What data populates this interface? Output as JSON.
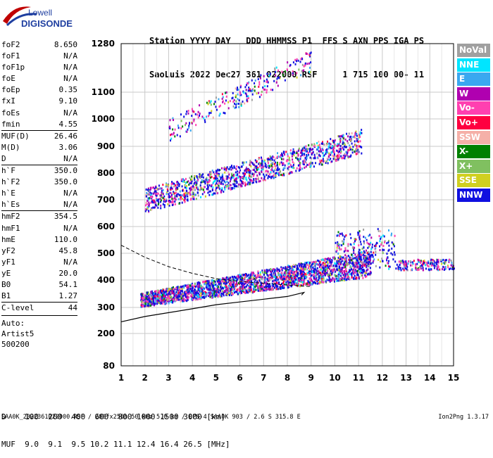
{
  "logo": {
    "line1": "Lowell",
    "line2": "DIGISONDE"
  },
  "header": {
    "row1": "Station YYYY DAY   DDD HHMMSS P1  FFS S AXN PPS IGA PS",
    "row2": "SaoLuis 2022 Dec27 361 022000 RSF     1 715 100 00- 11"
  },
  "params": {
    "group1": [
      {
        "label": "foF2",
        "value": "8.650"
      },
      {
        "label": "foF1",
        "value": "N/A"
      },
      {
        "label": "foF1p",
        "value": "N/A"
      },
      {
        "label": "foE",
        "value": "N/A"
      },
      {
        "label": "foEp",
        "value": "0.35"
      },
      {
        "label": "fxI",
        "value": "9.10"
      },
      {
        "label": "foEs",
        "value": "N/A"
      },
      {
        "label": "fmin",
        "value": "4.55"
      }
    ],
    "group2": [
      {
        "label": "MUF(D)",
        "value": "26.46"
      },
      {
        "label": "M(D)",
        "value": "3.06"
      },
      {
        "label": "D",
        "value": "N/A"
      }
    ],
    "group3": [
      {
        "label": "h`F",
        "value": "350.0"
      },
      {
        "label": "h`F2",
        "value": "350.0"
      },
      {
        "label": "h`E",
        "value": "N/A"
      },
      {
        "label": "h`Es",
        "value": "N/A"
      }
    ],
    "group4": [
      {
        "label": "hmF2",
        "value": "354.5"
      },
      {
        "label": "hmF1",
        "value": "N/A"
      },
      {
        "label": "hmE",
        "value": "110.0"
      },
      {
        "label": "yF2",
        "value": "45.8"
      },
      {
        "label": "yF1",
        "value": "N/A"
      },
      {
        "label": "yE",
        "value": "20.0"
      },
      {
        "label": "B0",
        "value": "54.1"
      },
      {
        "label": "B1",
        "value": "1.27"
      }
    ],
    "group5": [
      {
        "label": "C-level",
        "value": "44"
      }
    ],
    "auto": [
      "Auto:",
      "Artist5",
      "500200"
    ]
  },
  "legend": [
    {
      "label": "NoVal",
      "color": "#a0a0a0"
    },
    {
      "label": "NNE",
      "color": "#00e5ff"
    },
    {
      "label": "E",
      "color": "#3aa8f0"
    },
    {
      "label": "W",
      "color": "#b000b0"
    },
    {
      "label": "Vo-",
      "color": "#ff40b0"
    },
    {
      "label": "Vo+",
      "color": "#ff0040"
    },
    {
      "label": "SSW",
      "color": "#f5b0a8"
    },
    {
      "label": "X-",
      "color": "#008000"
    },
    {
      "label": "X+",
      "color": "#80c060"
    },
    {
      "label": "SSE",
      "color": "#d0d020"
    },
    {
      "label": "NNW",
      "color": "#1010e0"
    }
  ],
  "chart_data": {
    "type": "scatter",
    "title": "",
    "xlabel": "",
    "ylabel": "",
    "xlim": [
      1,
      15
    ],
    "ylim": [
      80,
      1280
    ],
    "x_ticks": [
      1,
      2,
      3,
      4,
      5,
      6,
      7,
      8,
      9,
      10,
      11,
      12,
      13,
      14,
      15
    ],
    "y_ticks": [
      80,
      200,
      300,
      400,
      500,
      600,
      700,
      800,
      900,
      1000,
      1100,
      1280
    ],
    "grid": true,
    "traces": [
      {
        "name": "F layer main trace",
        "x_range": [
          1.8,
          11.5
        ],
        "h_range": [
          300,
          500
        ]
      },
      {
        "name": "second hop trace",
        "x_range": [
          2.0,
          11.1
        ],
        "h_range": [
          650,
          950
        ]
      },
      {
        "name": "third hop trace",
        "x_range": [
          3.0,
          9.0
        ],
        "h_range": [
          940,
          1230
        ]
      },
      {
        "name": "spread F near foF2",
        "x_range": [
          10.0,
          15.0
        ],
        "h_range": [
          420,
          600
        ]
      }
    ],
    "profile_curve": [
      [
        1,
        245
      ],
      [
        2,
        265
      ],
      [
        3,
        280
      ],
      [
        4,
        295
      ],
      [
        5,
        310
      ],
      [
        6,
        320
      ],
      [
        7,
        330
      ],
      [
        8,
        340
      ],
      [
        8.7,
        354.5
      ],
      [
        8.6,
        345
      ]
    ],
    "dashed_curve": [
      [
        1,
        530
      ],
      [
        2,
        485
      ],
      [
        3,
        450
      ],
      [
        4,
        425
      ],
      [
        5,
        405
      ],
      [
        6,
        395
      ],
      [
        7,
        388
      ],
      [
        8,
        382
      ],
      [
        9,
        376
      ]
    ]
  },
  "muf_table": {
    "d_row": "D    100  200  400  600  800 1000 1500 3000 [km]",
    "muf_row": "MUF  9.0  9.1  9.5 10.2 11.1 12.4 16.4 26.5 [MHz]"
  },
  "footer": {
    "left": "SAA0K_2022361022000.RSF / 280fx256h 50 kHz 5.0 km / DPS-4 SAA0K 903 / 2.6 S 315.8 E",
    "right": "Ion2Png 1.3.17"
  }
}
